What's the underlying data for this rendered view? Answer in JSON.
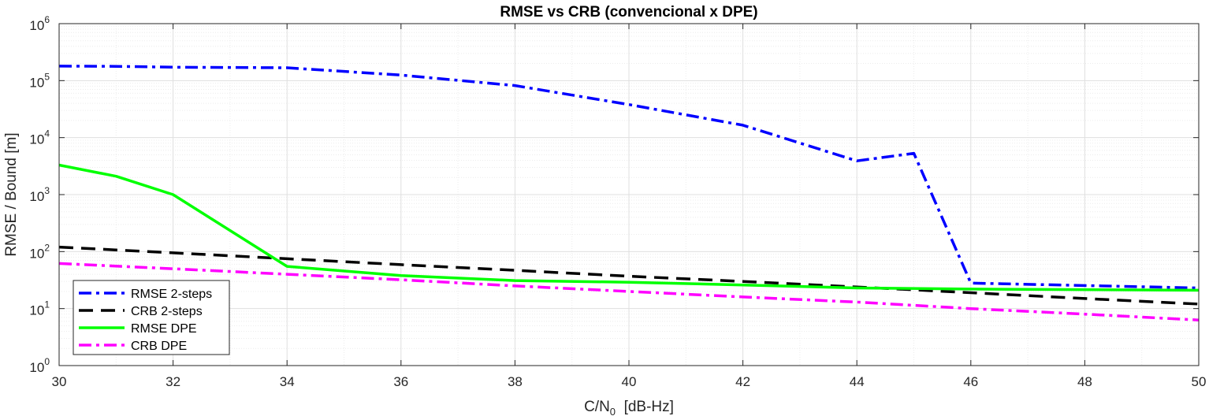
{
  "chart_data": {
    "type": "line",
    "title": "RMSE vs CRB (convencional x DPE)",
    "xlabel_main": "C/N",
    "xlabel_sub": "0",
    "xlabel_rest": "  [dB-Hz]",
    "ylabel": "RMSE / Bound [m]",
    "xlim": [
      30,
      50
    ],
    "ylim": [
      1,
      1000000
    ],
    "yscale": "log",
    "grid": true,
    "minor_grid": true,
    "legend_position": "bottom-left",
    "x_ticks": [
      "30",
      "32",
      "34",
      "36",
      "38",
      "40",
      "42",
      "44",
      "46",
      "48",
      "50"
    ],
    "y_ticks": [
      {
        "base": "10",
        "exp": "0"
      },
      {
        "base": "10",
        "exp": "1"
      },
      {
        "base": "10",
        "exp": "2"
      },
      {
        "base": "10",
        "exp": "3"
      },
      {
        "base": "10",
        "exp": "4"
      },
      {
        "base": "10",
        "exp": "5"
      },
      {
        "base": "10",
        "exp": "6"
      }
    ],
    "series": [
      {
        "name": "RMSE 2-steps",
        "color": "#0000ff",
        "style": "dashdot",
        "x": [
          30,
          31,
          32,
          34,
          36,
          38,
          40,
          42,
          44,
          45,
          46,
          50
        ],
        "y": [
          180000,
          178000,
          172000,
          168000,
          125000,
          82000,
          38000,
          16500,
          3900,
          5300,
          28,
          23
        ]
      },
      {
        "name": "CRB 2-steps",
        "color": "#000000",
        "style": "dashed",
        "x": [
          30,
          32,
          34,
          36,
          38,
          40,
          42,
          44,
          46,
          48,
          50
        ],
        "y": [
          120,
          95,
          75,
          59,
          47,
          37,
          30,
          24,
          19,
          15,
          12
        ]
      },
      {
        "name": "RMSE DPE",
        "color": "#00ff00",
        "style": "solid",
        "x": [
          30,
          31,
          32,
          34,
          36,
          38,
          40,
          42,
          44,
          46,
          50
        ],
        "y": [
          3300,
          2100,
          1000,
          55,
          38,
          31,
          29,
          26,
          23,
          22,
          21
        ]
      },
      {
        "name": "CRB DPE",
        "color": "#ff00ff",
        "style": "dashdot",
        "x": [
          30,
          32,
          34,
          36,
          38,
          40,
          42,
          44,
          46,
          48,
          50
        ],
        "y": [
          62,
          50,
          40,
          32,
          25,
          20,
          16,
          13,
          10,
          8,
          6.3
        ]
      }
    ]
  }
}
